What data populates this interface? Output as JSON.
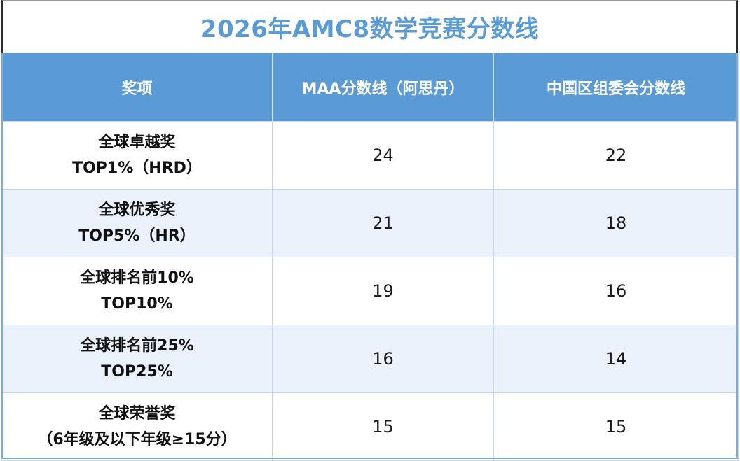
{
  "title": "2026年AMC8数学竞赛分数线",
  "colors": {
    "title": "#5b9bd5",
    "header_bg": "#5b9bd5",
    "header_text": "#ffffff",
    "stripe": "#eaf1fa"
  },
  "headers": [
    "奖项",
    "MAA分数线（阿思丹）",
    "中国区组委会分数线"
  ],
  "rows": [
    {
      "award": [
        "全球卓越奖",
        "TOP1%（HRD）"
      ],
      "maa": "24",
      "china": "22"
    },
    {
      "award": [
        "全球优秀奖",
        "TOP5%（HR）"
      ],
      "maa": "21",
      "china": "18"
    },
    {
      "award": [
        "全球排名前10%",
        "TOP10%"
      ],
      "maa": "19",
      "china": "16"
    },
    {
      "award": [
        "全球排名前25%",
        "TOP25%"
      ],
      "maa": "16",
      "china": "14"
    },
    {
      "award": [
        "全球荣誉奖",
        "（6年级及以下年级≥15分）"
      ],
      "maa": "15",
      "china": "15"
    }
  ]
}
